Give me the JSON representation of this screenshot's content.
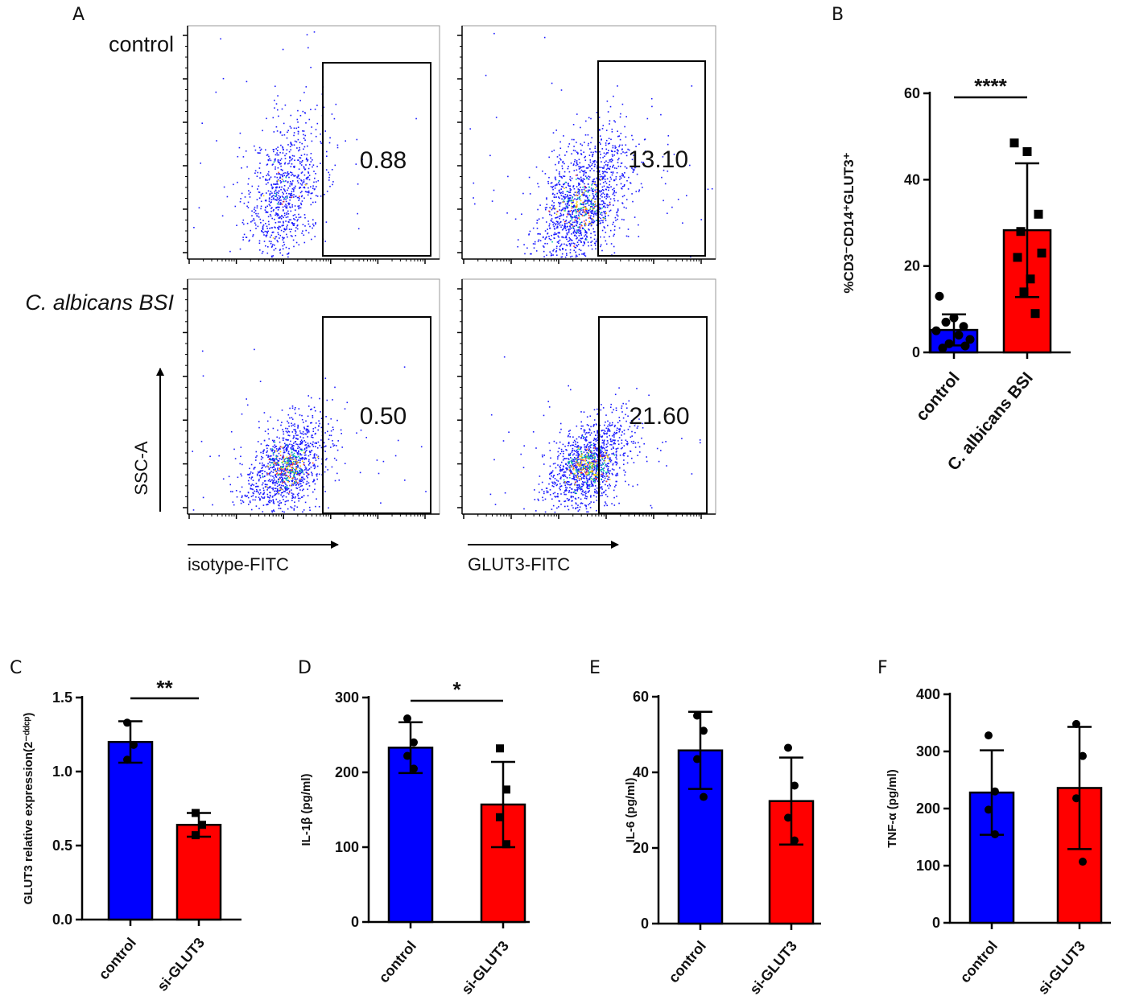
{
  "panel_labels": {
    "A": "A",
    "B": "B",
    "C": "C",
    "D": "D",
    "E": "E",
    "F": "F"
  },
  "flow": {
    "row_labels": [
      "control",
      "C. albicans BSI"
    ],
    "y_axis_label": "SSC-A",
    "x_axis_labels": [
      "isotype-FITC",
      "GLUT3-FITC"
    ],
    "gate_values": [
      {
        "row": "control",
        "stain": "isotype-FITC",
        "value": "0.88"
      },
      {
        "row": "control",
        "stain": "GLUT3-FITC",
        "value": "13.10"
      },
      {
        "row": "C. albicans BSI",
        "stain": "isotype-FITC",
        "value": "0.50"
      },
      {
        "row": "C. albicans BSI",
        "stain": "GLUT3-FITC",
        "value": "21.60"
      }
    ]
  },
  "colors": {
    "control": "#0000ff",
    "treated": "#ff0000",
    "axis": "#000000",
    "dots_blue": "#1a1aff",
    "dots_hot": "#ffd400"
  },
  "chart_data": [
    {
      "panel": "B",
      "type": "bar",
      "categories": [
        "control",
        "C. albicans BSI"
      ],
      "values": [
        5.2,
        28.3
      ],
      "error": [
        3.6,
        15.5
      ],
      "points": [
        [
          13,
          8,
          7,
          6,
          5,
          4,
          3,
          2,
          1.5,
          1
        ],
        [
          48.5,
          46.5,
          32,
          28,
          23,
          22,
          17,
          14,
          9
        ]
      ],
      "markers": [
        "circle",
        "square"
      ],
      "ylabel": "%CD3⁻CD14⁺GLUT3⁺",
      "ylim": [
        0,
        60
      ],
      "yticks": [
        "0",
        "20",
        "40",
        "60"
      ],
      "significance": "****"
    },
    {
      "panel": "C",
      "type": "bar",
      "categories": [
        "control",
        "si-GLUT3"
      ],
      "values": [
        1.2,
        0.64
      ],
      "error": [
        0.14,
        0.08
      ],
      "points": [
        [
          1.33,
          1.18,
          1.08
        ],
        [
          0.72,
          0.64,
          0.57
        ]
      ],
      "markers": [
        "circle",
        "square"
      ],
      "ylabel": "GLUT3 relative expression(2⁻ᵈᵈᶜᵖ)",
      "ylim": [
        0,
        1.5
      ],
      "yticks": [
        "0.0",
        "0.5",
        "1.0",
        "1.5"
      ],
      "significance": "**"
    },
    {
      "panel": "D",
      "type": "bar",
      "categories": [
        "control",
        "si-GLUT3"
      ],
      "values": [
        233,
        157
      ],
      "error": [
        34,
        57
      ],
      "points": [
        [
          272,
          240,
          222,
          205
        ],
        [
          232,
          177,
          140,
          104
        ]
      ],
      "markers": [
        "circle",
        "square"
      ],
      "ylabel": "IL-1β (pg/ml)",
      "ylim": [
        0,
        300
      ],
      "yticks": [
        "0",
        "100",
        "200",
        "300"
      ],
      "significance": "*"
    },
    {
      "panel": "E",
      "type": "bar",
      "categories": [
        "control",
        "si-GLUT3"
      ],
      "values": [
        45.8,
        32.4
      ],
      "error": [
        10.2,
        11.5
      ],
      "points": [
        [
          55,
          51,
          43.5,
          33.5
        ],
        [
          46.5,
          36.5,
          28,
          22
        ]
      ],
      "markers": [
        "circle",
        "circle"
      ],
      "ylabel": "IL-6 (pg/ml)",
      "ylim": [
        0,
        60
      ],
      "yticks": [
        "0",
        "20",
        "40",
        "60"
      ],
      "significance": ""
    },
    {
      "panel": "F",
      "type": "bar",
      "categories": [
        "control",
        "si-GLUT3"
      ],
      "values": [
        228,
        236
      ],
      "error": [
        74,
        107
      ],
      "points": [
        [
          328,
          230,
          198,
          155
        ],
        [
          348,
          292,
          218,
          107
        ]
      ],
      "markers": [
        "circle",
        "circle"
      ],
      "ylabel": "TNF-α (pg/ml)",
      "ylim": [
        0,
        400
      ],
      "yticks": [
        "0",
        "100",
        "200",
        "300",
        "400"
      ],
      "significance": ""
    }
  ]
}
